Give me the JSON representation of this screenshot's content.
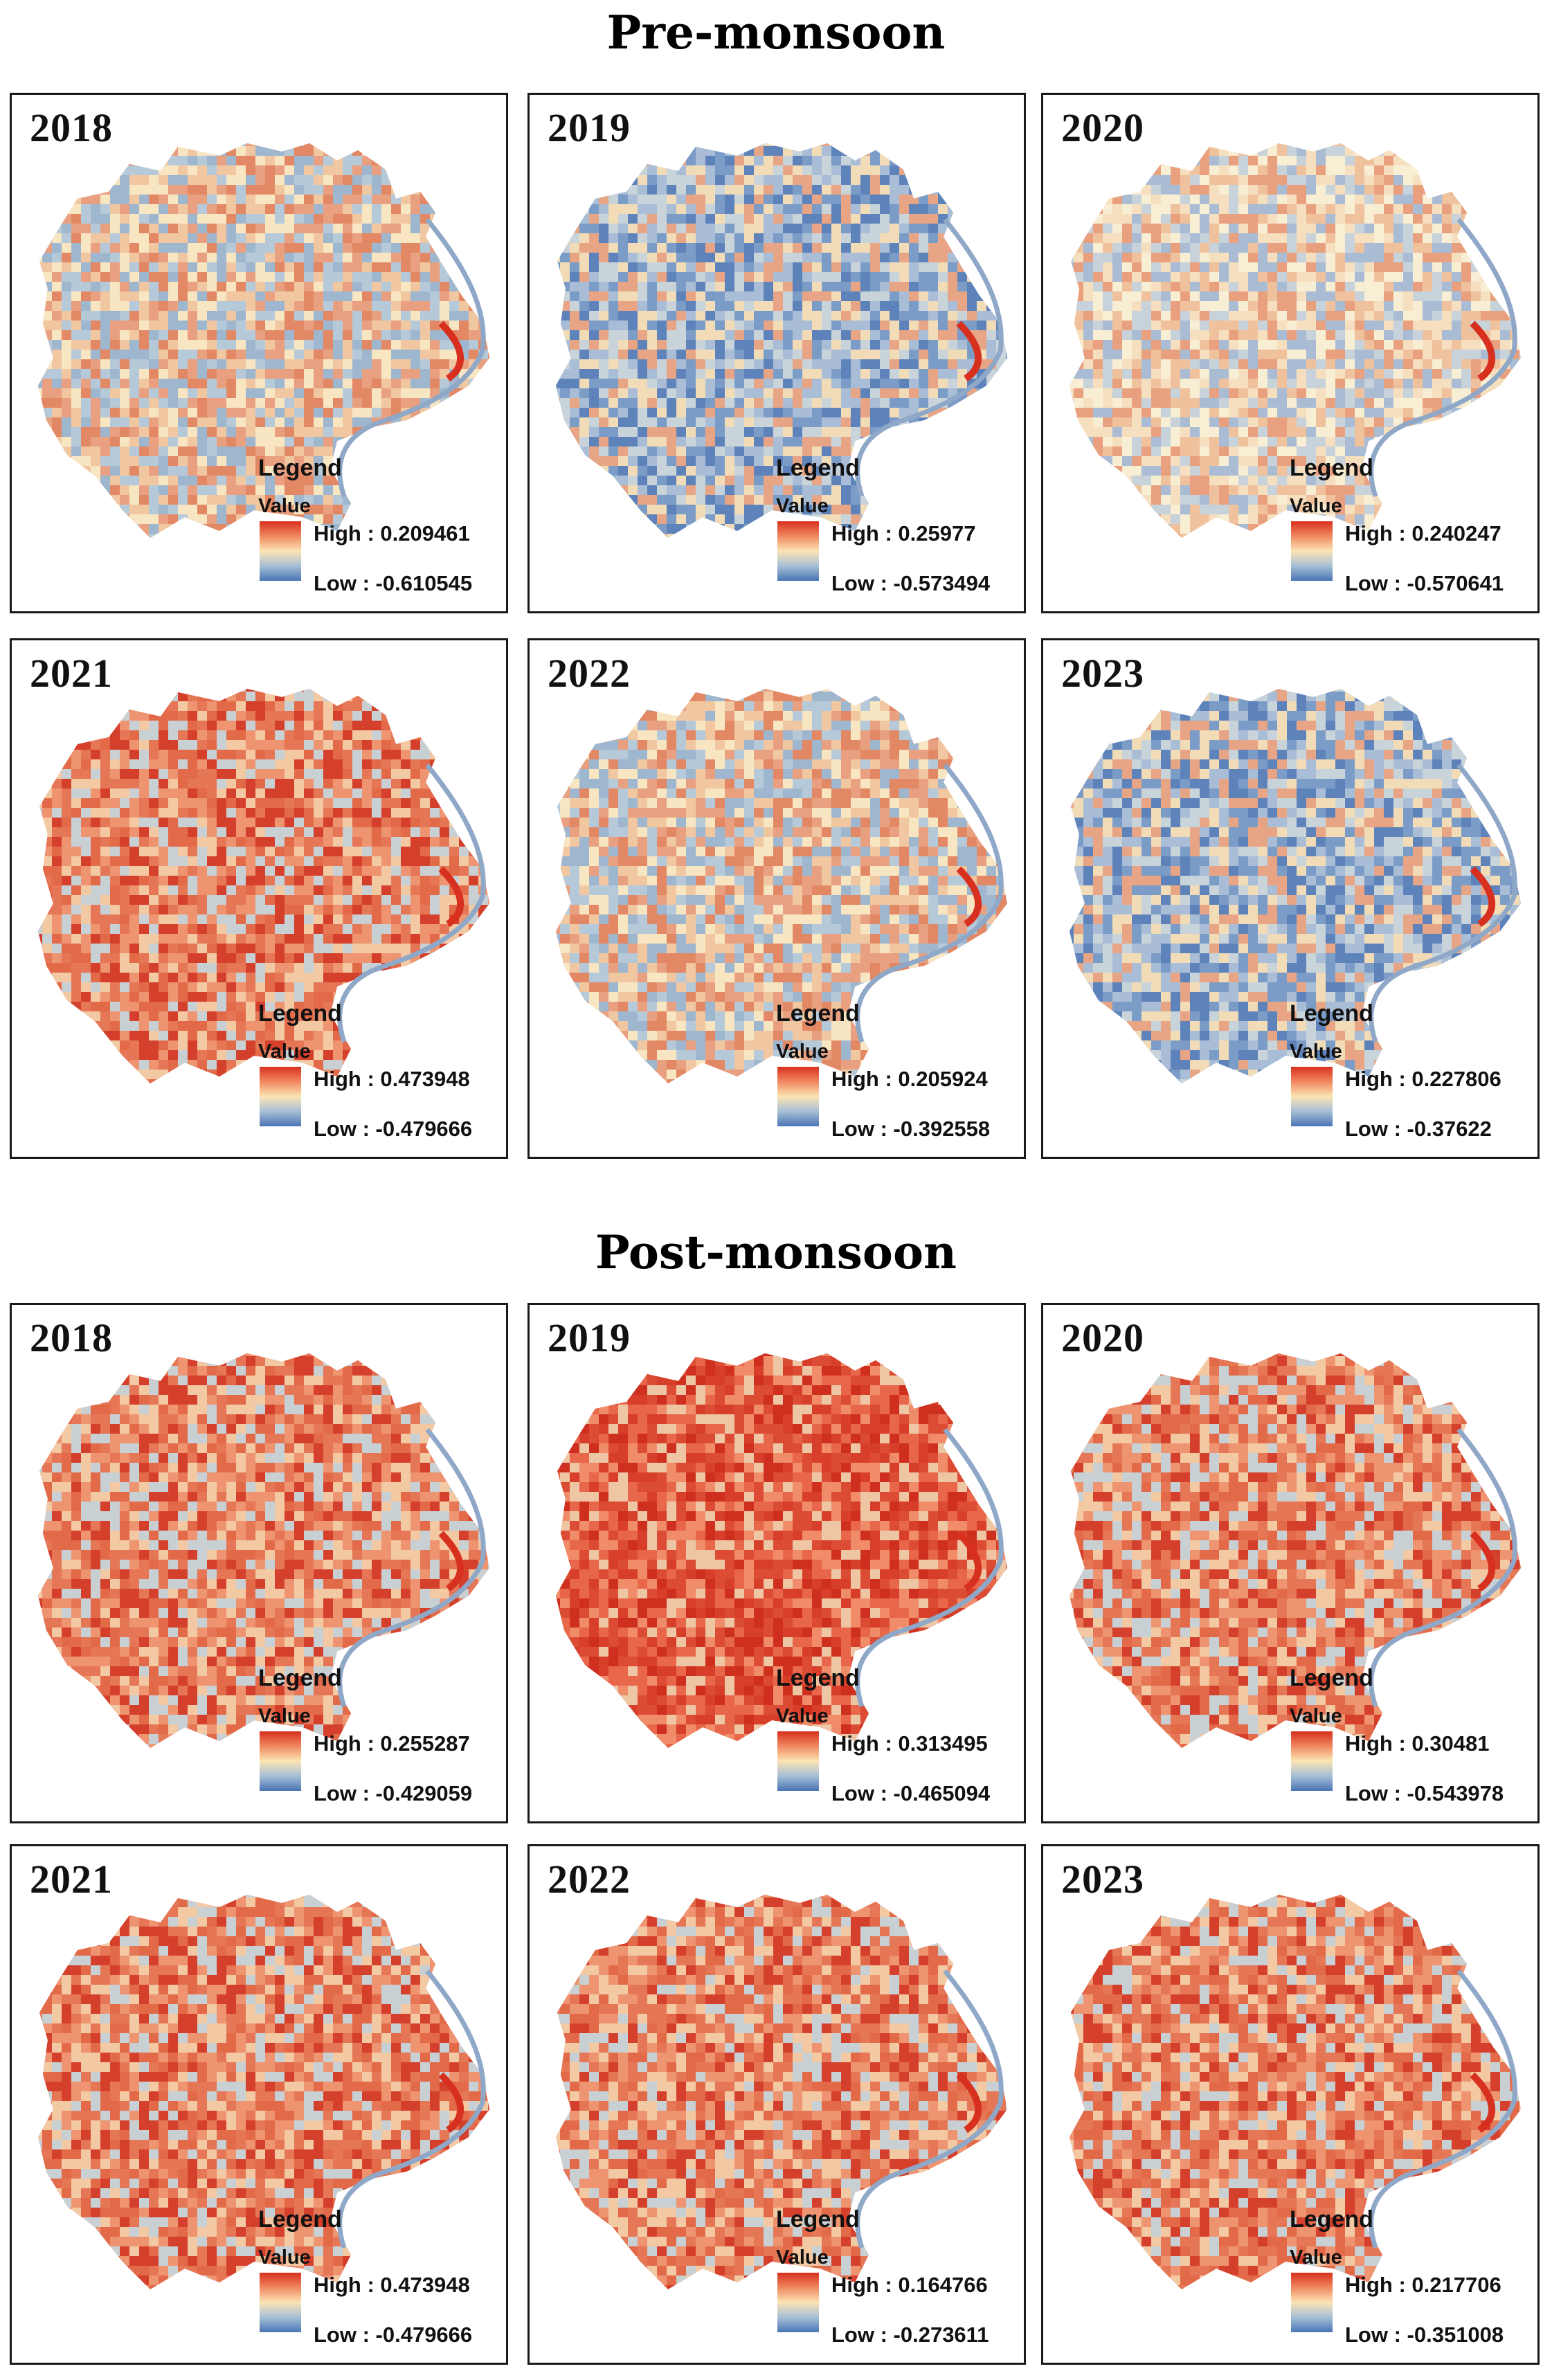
{
  "sections": [
    {
      "title": "Pre-monsoon",
      "panels": [
        {
          "year": "2018",
          "legend_title": "Legend",
          "value_label": "Value",
          "high": "High : 0.209461",
          "low": "Low : -0.610545",
          "tone": "mixed"
        },
        {
          "year": "2019",
          "legend_title": "Legend",
          "value_label": "Value",
          "high": "High : 0.25977",
          "low": "Low : -0.573494",
          "tone": "cool"
        },
        {
          "year": "2020",
          "legend_title": "Legend",
          "value_label": "Value",
          "high": "High : 0.240247",
          "low": "Low : -0.570641",
          "tone": "pale"
        },
        {
          "year": "2021",
          "legend_title": "Legend",
          "value_label": "Value",
          "high": "High : 0.473948",
          "low": "Low : -0.479666",
          "tone": "warm"
        },
        {
          "year": "2022",
          "legend_title": "Legend",
          "value_label": "Value",
          "high": "High : 0.205924",
          "low": "Low : -0.392558",
          "tone": "mixed"
        },
        {
          "year": "2023",
          "legend_title": "Legend",
          "value_label": "Value",
          "high": "High : 0.227806",
          "low": "Low : -0.37622",
          "tone": "cool"
        }
      ]
    },
    {
      "title": "Post-monsoon",
      "panels": [
        {
          "year": "2018",
          "legend_title": "Legend",
          "value_label": "Value",
          "high": "High : 0.255287",
          "low": "Low : -0.429059",
          "tone": "warm"
        },
        {
          "year": "2019",
          "legend_title": "Legend",
          "value_label": "Value",
          "high": "High : 0.313495",
          "low": "Low : -0.465094",
          "tone": "hot"
        },
        {
          "year": "2020",
          "legend_title": "Legend",
          "value_label": "Value",
          "high": "High : 0.30481",
          "low": "Low : -0.543978",
          "tone": "warm"
        },
        {
          "year": "2021",
          "legend_title": "Legend",
          "value_label": "Value",
          "high": "High : 0.473948",
          "low": "Low : -0.479666",
          "tone": "warm"
        },
        {
          "year": "2022",
          "legend_title": "Legend",
          "value_label": "Value",
          "high": "High : 0.164766",
          "low": "Low : -0.273611",
          "tone": "warm"
        },
        {
          "year": "2023",
          "legend_title": "Legend",
          "value_label": "Value",
          "high": "High : 0.217706",
          "low": "Low : -0.351008",
          "tone": "warm"
        }
      ]
    }
  ],
  "colors": {
    "ramp_high": "#d7301f",
    "ramp_mid": "#fbe4b4",
    "ramp_low": "#4a74b4",
    "river": "#8fa8c8"
  }
}
